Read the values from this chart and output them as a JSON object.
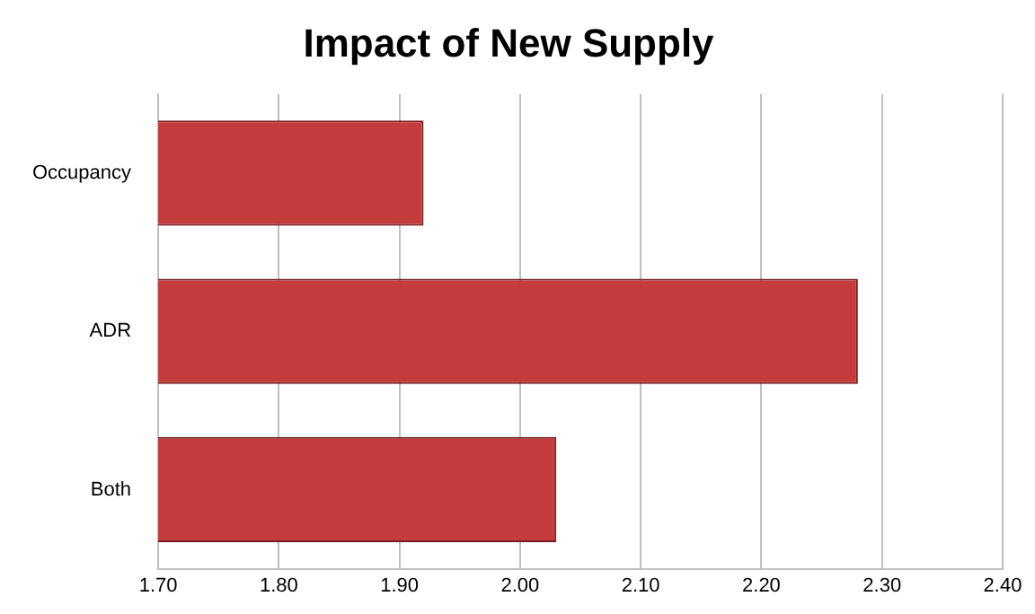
{
  "chart_data": {
    "type": "bar",
    "orientation": "horizontal",
    "title": "Impact of New Supply",
    "categories": [
      "Occupancy",
      "ADR",
      "Both"
    ],
    "values": [
      1.92,
      2.28,
      2.03
    ],
    "color": "#c43c3c",
    "xlim": [
      1.7,
      2.4
    ],
    "xticks": [
      {
        "value": 1.7,
        "label": "1.70"
      },
      {
        "value": 1.8,
        "label": "1.80"
      },
      {
        "value": 1.9,
        "label": "1.90"
      },
      {
        "value": 2.0,
        "label": "2.00"
      },
      {
        "value": 2.1,
        "label": "2.10"
      },
      {
        "value": 2.2,
        "label": "2.20"
      },
      {
        "value": 2.3,
        "label": "2.30"
      },
      {
        "value": 2.4,
        "label": "2.40"
      }
    ],
    "grid": "x",
    "legend": false
  }
}
